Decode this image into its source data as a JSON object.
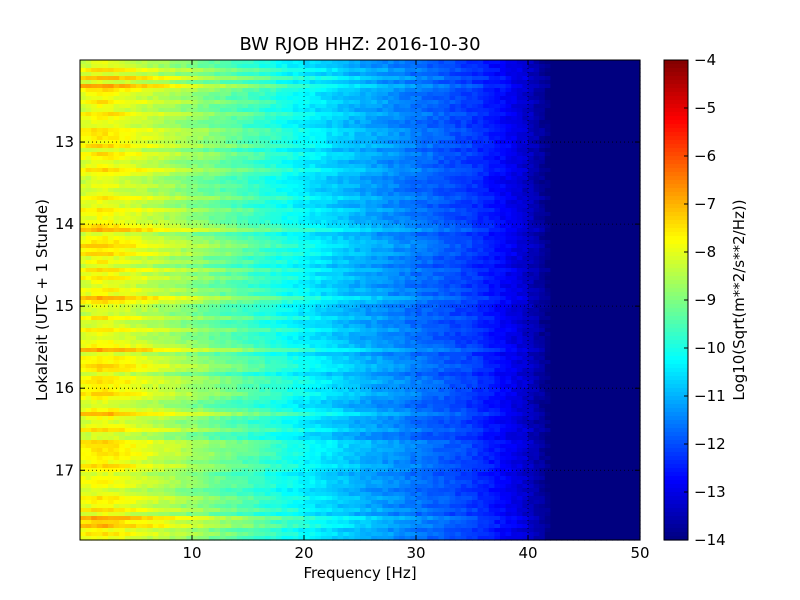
{
  "chart_data": {
    "type": "heatmap",
    "title": "BW RJOB HHZ: 2016-10-30",
    "xlabel": "Frequency [Hz]",
    "ylabel": "Lokalzeit (UTC + 1 Stunde)",
    "xlim": [
      0,
      50
    ],
    "ylim": [
      12.0,
      17.85
    ],
    "y_inverted": true,
    "x_ticks": [
      10,
      20,
      30,
      40,
      50
    ],
    "y_ticks": [
      13,
      14,
      15,
      16,
      17
    ],
    "grid": true,
    "colormap": "jet",
    "colorbar": {
      "label": "Log10(Sqrt(m**2/s**2/Hz))",
      "range": [
        -14,
        -4
      ],
      "ticks": [
        -4,
        -5,
        -6,
        -7,
        -8,
        -9,
        -10,
        -11,
        -12,
        -13,
        -14
      ]
    },
    "psd_profile": {
      "frequency_hz": [
        0,
        2,
        5,
        10,
        15,
        20,
        25,
        30,
        35,
        38,
        40,
        42,
        50
      ],
      "log10_psd": [
        -8.0,
        -7.7,
        -8.1,
        -8.8,
        -9.5,
        -10.3,
        -11.0,
        -11.6,
        -12.2,
        -12.8,
        -13.3,
        -14.0,
        -14.0
      ]
    }
  }
}
